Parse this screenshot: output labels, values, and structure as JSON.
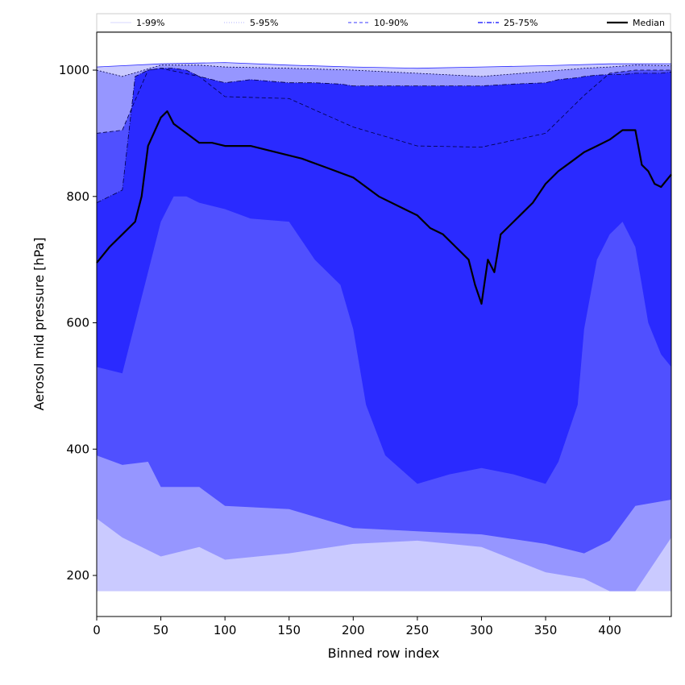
{
  "chart_data": {
    "type": "area",
    "xlabel": "Binned row index",
    "ylabel": "Aerosol mid pressure [hPa]",
    "xlim": [
      0,
      448
    ],
    "ylim": [
      135,
      1060
    ],
    "xticks": [
      0,
      50,
      100,
      150,
      200,
      250,
      300,
      350,
      400
    ],
    "yticks": [
      200,
      400,
      600,
      800,
      1000
    ],
    "grid": false,
    "legend_position": "top",
    "legend": [
      {
        "label": "1-99%",
        "color": "#cacaff",
        "style": "solid"
      },
      {
        "label": "5-95%",
        "color": "#9696ff",
        "style": "dotted"
      },
      {
        "label": "10-90%",
        "color": "#6060ff",
        "style": "dashed"
      },
      {
        "label": "25-75%",
        "color": "#3030ff",
        "style": "dashdot"
      },
      {
        "label": "Median",
        "color": "#000000",
        "style": "solid"
      }
    ],
    "bands": [
      {
        "name": "1-99%",
        "color": "#cacaff",
        "x": [
          0,
          50,
          100,
          150,
          200,
          250,
          300,
          350,
          400,
          448
        ],
        "lower": [
          175,
          175,
          175,
          175,
          175,
          175,
          175,
          175,
          175,
          175
        ],
        "upper": [
          1005,
          1010,
          1012,
          1008,
          1005,
          1003,
          1005,
          1007,
          1010,
          1010
        ]
      },
      {
        "name": "5-95%",
        "color": "#9696ff",
        "x": [
          0,
          20,
          50,
          80,
          100,
          150,
          200,
          250,
          300,
          350,
          380,
          400,
          420,
          448
        ],
        "lower": [
          290,
          260,
          230,
          245,
          225,
          235,
          250,
          255,
          245,
          205,
          195,
          175,
          175,
          260
        ],
        "upper": [
          1000,
          990,
          1008,
          1008,
          1005,
          1003,
          1000,
          995,
          990,
          998,
          1003,
          1005,
          1008,
          1007
        ]
      },
      {
        "name": "10-90%",
        "color": "#5050ff",
        "x": [
          0,
          20,
          40,
          50,
          80,
          100,
          150,
          200,
          250,
          300,
          350,
          380,
          400,
          420,
          448
        ],
        "lower": [
          390,
          375,
          380,
          340,
          340,
          310,
          305,
          275,
          270,
          265,
          250,
          235,
          255,
          310,
          320
        ],
        "upper": [
          900,
          905,
          1000,
          1003,
          990,
          958,
          955,
          910,
          880,
          878,
          900,
          960,
          995,
          1000,
          1000
        ]
      },
      {
        "name": "25-75%",
        "color": "#2a2aff",
        "x": [
          0,
          20,
          30,
          40,
          50,
          60,
          70,
          80,
          100,
          120,
          150,
          170,
          190,
          200,
          210,
          225,
          250,
          275,
          300,
          325,
          350,
          360,
          375,
          380,
          390,
          400,
          410,
          420,
          430,
          440,
          448
        ],
        "lower": [
          530,
          520,
          600,
          680,
          760,
          800,
          800,
          790,
          780,
          765,
          760,
          700,
          660,
          590,
          470,
          390,
          345,
          360,
          370,
          360,
          345,
          380,
          470,
          590,
          700,
          740,
          760,
          720,
          600,
          550,
          530
        ],
        "upper": [
          790,
          810,
          990,
          1000,
          1003,
          1003,
          1000,
          990,
          980,
          985,
          980,
          980,
          978,
          975,
          975,
          975,
          975,
          975,
          975,
          978,
          980,
          985,
          988,
          990,
          992,
          993,
          993,
          995,
          995,
          995,
          997
        ]
      }
    ],
    "series": [
      {
        "name": "Median",
        "color": "#000000",
        "x": [
          0,
          10,
          20,
          30,
          35,
          40,
          50,
          55,
          60,
          70,
          80,
          90,
          100,
          120,
          140,
          160,
          180,
          200,
          220,
          240,
          250,
          260,
          270,
          280,
          290,
          295,
          300,
          305,
          310,
          315,
          320,
          330,
          340,
          350,
          360,
          370,
          380,
          390,
          400,
          410,
          420,
          425,
          430,
          435,
          440,
          448
        ],
        "values": [
          695,
          720,
          740,
          760,
          800,
          880,
          925,
          935,
          915,
          900,
          885,
          885,
          880,
          880,
          870,
          860,
          845,
          830,
          800,
          780,
          770,
          750,
          740,
          720,
          700,
          660,
          630,
          700,
          680,
          740,
          750,
          770,
          790,
          820,
          840,
          855,
          870,
          880,
          890,
          905,
          905,
          850,
          840,
          820,
          815,
          835
        ]
      }
    ]
  }
}
